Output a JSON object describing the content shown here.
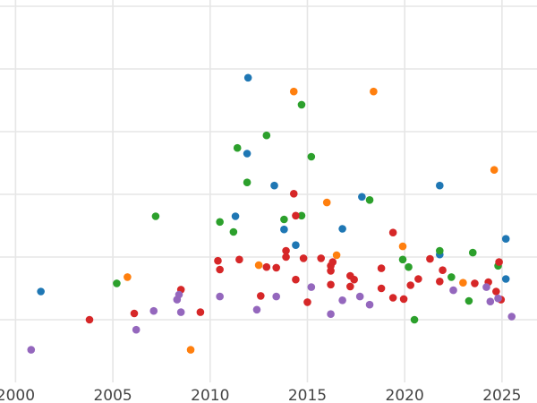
{
  "chart_data": {
    "type": "scatter",
    "title": "",
    "xlabel": "",
    "ylabel": "",
    "xlim": [
      1999.2,
      2026.8
    ],
    "ylim": [
      0,
      6
    ],
    "x_ticks": [
      2000,
      2005,
      2010,
      2015,
      2020,
      2025
    ],
    "y_gridlines": [
      1,
      2,
      3,
      4,
      5,
      6
    ],
    "grid": true,
    "legend": "none",
    "series": [
      {
        "color": "#1f77b4",
        "points": [
          [
            2001.3,
            1.45
          ],
          [
            2011.3,
            2.65
          ],
          [
            2011.9,
            3.65
          ],
          [
            2011.95,
            4.86
          ],
          [
            2013.3,
            3.14
          ],
          [
            2013.8,
            2.44
          ],
          [
            2014.4,
            2.19
          ],
          [
            2016.8,
            2.45
          ],
          [
            2017.8,
            2.96
          ],
          [
            2021.8,
            3.14
          ],
          [
            2021.8,
            2.04
          ],
          [
            2025.2,
            2.29
          ],
          [
            2025.2,
            1.65
          ]
        ]
      },
      {
        "color": "#ff7f0e",
        "points": [
          [
            2005.75,
            1.68
          ],
          [
            2009.0,
            0.52
          ],
          [
            2012.5,
            1.87
          ],
          [
            2014.3,
            4.64
          ],
          [
            2016.0,
            2.87
          ],
          [
            2016.5,
            2.03
          ],
          [
            2018.4,
            4.64
          ],
          [
            2019.9,
            2.17
          ],
          [
            2023.0,
            1.59
          ],
          [
            2024.6,
            3.39
          ]
        ]
      },
      {
        "color": "#2ca02c",
        "points": [
          [
            2005.2,
            1.58
          ],
          [
            2007.2,
            2.65
          ],
          [
            2010.5,
            2.56
          ],
          [
            2011.2,
            2.4
          ],
          [
            2011.4,
            3.74
          ],
          [
            2011.9,
            3.19
          ],
          [
            2012.9,
            3.94
          ],
          [
            2013.8,
            2.6
          ],
          [
            2014.7,
            4.43
          ],
          [
            2014.7,
            2.66
          ],
          [
            2015.2,
            3.6
          ],
          [
            2018.2,
            2.91
          ],
          [
            2019.9,
            1.96
          ],
          [
            2020.2,
            1.84
          ],
          [
            2020.5,
            1.0
          ],
          [
            2021.8,
            2.1
          ],
          [
            2022.4,
            1.68
          ],
          [
            2023.3,
            1.3
          ],
          [
            2023.5,
            2.07
          ],
          [
            2024.8,
            1.86
          ]
        ]
      },
      {
        "color": "#d62728",
        "points": [
          [
            2003.8,
            1.0
          ],
          [
            2006.1,
            1.1
          ],
          [
            2008.5,
            1.48
          ],
          [
            2009.5,
            1.12
          ],
          [
            2010.4,
            1.94
          ],
          [
            2010.5,
            1.8
          ],
          [
            2011.5,
            1.96
          ],
          [
            2012.6,
            1.38
          ],
          [
            2012.9,
            1.84
          ],
          [
            2013.4,
            1.83
          ],
          [
            2013.9,
            2.0
          ],
          [
            2013.9,
            2.1
          ],
          [
            2014.4,
            1.64
          ],
          [
            2014.3,
            3.01
          ],
          [
            2014.4,
            2.66
          ],
          [
            2014.8,
            1.98
          ],
          [
            2015.0,
            1.28
          ],
          [
            2015.7,
            1.98
          ],
          [
            2016.2,
            1.78
          ],
          [
            2016.2,
            1.86
          ],
          [
            2016.3,
            1.92
          ],
          [
            2016.2,
            1.56
          ],
          [
            2017.2,
            1.53
          ],
          [
            2017.2,
            1.7
          ],
          [
            2017.4,
            1.64
          ],
          [
            2018.8,
            1.82
          ],
          [
            2018.8,
            1.5
          ],
          [
            2019.4,
            2.39
          ],
          [
            2019.4,
            1.35
          ],
          [
            2019.95,
            1.33
          ],
          [
            2020.3,
            1.55
          ],
          [
            2020.7,
            1.65
          ],
          [
            2021.3,
            1.97
          ],
          [
            2021.8,
            1.61
          ],
          [
            2021.95,
            1.79
          ],
          [
            2023.6,
            1.58
          ],
          [
            2024.3,
            1.6
          ],
          [
            2024.7,
            1.45
          ],
          [
            2024.95,
            1.32
          ],
          [
            2024.85,
            1.92
          ]
        ]
      },
      {
        "color": "#9467bd",
        "points": [
          [
            2000.8,
            0.52
          ],
          [
            2006.2,
            0.84
          ],
          [
            2007.1,
            1.14
          ],
          [
            2008.3,
            1.32
          ],
          [
            2008.4,
            1.4
          ],
          [
            2008.5,
            1.12
          ],
          [
            2010.5,
            1.37
          ],
          [
            2012.4,
            1.16
          ],
          [
            2013.4,
            1.37
          ],
          [
            2015.2,
            1.52
          ],
          [
            2016.2,
            1.09
          ],
          [
            2016.8,
            1.31
          ],
          [
            2017.7,
            1.37
          ],
          [
            2018.2,
            1.24
          ],
          [
            2022.5,
            1.47
          ],
          [
            2024.2,
            1.52
          ],
          [
            2024.4,
            1.29
          ],
          [
            2024.8,
            1.34
          ],
          [
            2025.5,
            1.05
          ]
        ]
      }
    ]
  }
}
